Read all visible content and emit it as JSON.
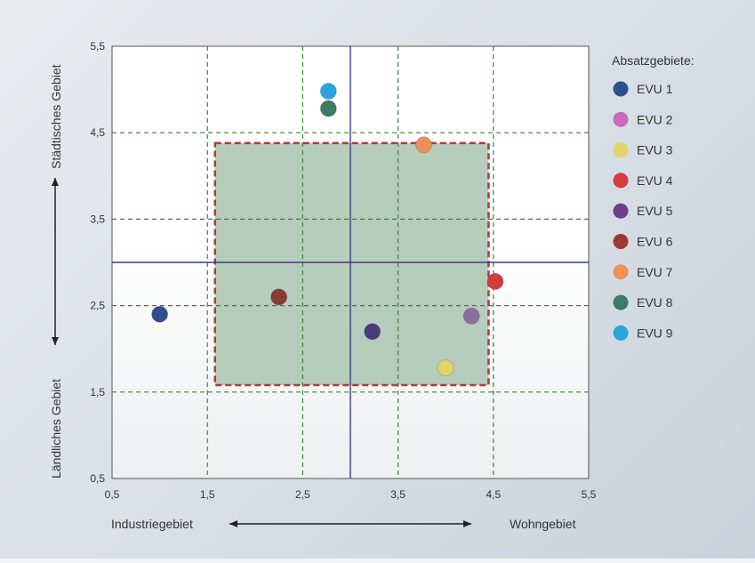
{
  "chart_data": {
    "type": "scatter",
    "title": "",
    "xlabel_left": "Industriegebiet",
    "xlabel_right": "Wohngebiet",
    "ylabel_top": "Städtisches Gebiet",
    "ylabel_bottom": "Ländliches Gebiet",
    "xlim": [
      0.5,
      5.5
    ],
    "ylim": [
      0.5,
      5.5
    ],
    "xticks": [
      "0,5",
      "1,5",
      "2,5",
      "3,5",
      "4,5",
      "5,5"
    ],
    "yticks": [
      "0,5",
      "1,5",
      "2,5",
      "3,5",
      "4,5",
      "5,5"
    ],
    "grid": "dashed-green",
    "quadrant_lines": {
      "x": 3.0,
      "y": 3.0
    },
    "highlight_region": {
      "x": [
        1.58,
        4.45
      ],
      "y": [
        1.58,
        4.38
      ],
      "fill": "#a9c4b0",
      "border": "#b03a3a"
    },
    "legend_title": "Absatzgebiete:",
    "legend_position": "right",
    "series": [
      {
        "name": "EVU 1",
        "x": 1.0,
        "y": 2.4,
        "color": "#2f4f8f"
      },
      {
        "name": "EVU 2",
        "x": 4.27,
        "y": 2.38,
        "color": "#8a6f9e"
      },
      {
        "name": "EVU 3",
        "x": 4.0,
        "y": 1.78,
        "color": "#e3d46a"
      },
      {
        "name": "EVU 4",
        "x": 4.52,
        "y": 2.78,
        "color": "#d23c3c"
      },
      {
        "name": "EVU 5",
        "x": 3.23,
        "y": 2.2,
        "color": "#4a3b7a"
      },
      {
        "name": "EVU 6",
        "x": 2.25,
        "y": 2.6,
        "color": "#8a3a2e"
      },
      {
        "name": "EVU 7",
        "x": 3.77,
        "y": 4.36,
        "color": "#e8925a"
      },
      {
        "name": "EVU 8",
        "x": 2.77,
        "y": 4.78,
        "color": "#3d7d63"
      },
      {
        "name": "EVU 9",
        "x": 2.77,
        "y": 4.98,
        "color": "#2aa6df"
      }
    ],
    "legend_colors": {
      "EVU 1": "#2f4f8f",
      "EVU 2": "#c86bb8",
      "EVU 3": "#e3d46a",
      "EVU 4": "#d23c3c",
      "EVU 5": "#6a3f8a",
      "EVU 6": "#9b3a33",
      "EVU 7": "#ee9255",
      "EVU 8": "#3d7d63",
      "EVU 9": "#2aa6df"
    }
  }
}
